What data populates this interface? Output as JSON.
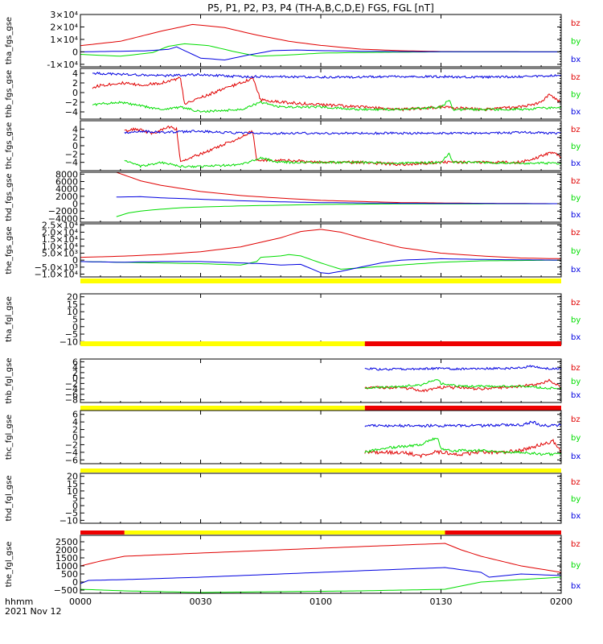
{
  "title": "P5, P1, P2, P3, P4 (TH-A,B,C,D,E) FGS, FGL [nT]",
  "footer": {
    "time_label": "hhmm",
    "date_label": "2021 Nov 12"
  },
  "colors": {
    "bz": "#e00000",
    "by": "#00dd00",
    "bx": "#0000e0",
    "bar_yellow": "#ffff00",
    "bar_red": "#ee0000"
  },
  "x_axis": {
    "range_min": [
      0,
      120
    ],
    "ticks_min": [
      0,
      30,
      60,
      90,
      120
    ],
    "tick_labels": [
      "0000",
      "0030",
      "0100",
      "0130",
      "0200"
    ]
  },
  "chart_data": [
    {
      "type": "line",
      "panel": "tha_fgs_gse",
      "ylabel": "tha_fgs_gse",
      "ylim": [
        -12000,
        30000
      ],
      "yticks": [
        -10000,
        0,
        10000,
        20000,
        30000
      ],
      "ytick_labels": [
        "-1×10⁴",
        "0",
        "1×10⁴",
        "2×10⁴",
        "3×10⁴"
      ],
      "series": [
        {
          "name": "bz",
          "x": [
            0,
            10,
            20,
            28,
            36,
            44,
            52,
            60,
            70,
            80,
            90,
            100,
            110,
            120
          ],
          "values": [
            5000,
            8500,
            16500,
            22000,
            19500,
            13500,
            8500,
            5200,
            2200,
            900,
            300,
            100,
            50,
            0
          ]
        },
        {
          "name": "by",
          "x": [
            0,
            10,
            18,
            22,
            26,
            32,
            38,
            44,
            52,
            60,
            70,
            80,
            90,
            120
          ],
          "values": [
            -2000,
            -3500,
            -600,
            4500,
            6500,
            5000,
            500,
            -3500,
            -2500,
            -1000,
            -500,
            -200,
            0,
            0
          ]
        },
        {
          "name": "bx",
          "x": [
            0,
            10,
            16,
            22,
            24,
            30,
            36,
            42,
            48,
            54,
            60,
            70,
            80,
            120
          ],
          "values": [
            0,
            500,
            800,
            2000,
            4000,
            -5000,
            -6500,
            -2500,
            1000,
            1500,
            1000,
            500,
            200,
            0
          ]
        }
      ]
    },
    {
      "type": "line",
      "panel": "thb_fgs_gse",
      "ylabel": "thb_fgs_gse",
      "ylim": [
        -5.5,
        5
      ],
      "yticks": [
        -4,
        -2,
        0,
        2,
        4
      ],
      "ytick_labels": [
        "−4",
        "−2",
        "0",
        "2",
        "4"
      ],
      "series": [
        {
          "name": "bz",
          "x": [
            3,
            5,
            10,
            15,
            20,
            25,
            26,
            30,
            35,
            40,
            43,
            45,
            50,
            60,
            70,
            80,
            90,
            100,
            110,
            115,
            117,
            120
          ],
          "values": [
            1,
            1.5,
            2,
            1.5,
            2,
            3,
            -2.5,
            -1,
            0.5,
            2,
            3,
            -1.5,
            -2,
            -2.5,
            -3,
            -3.5,
            -3,
            -3.5,
            -3,
            -2,
            -0.5,
            -2
          ]
        },
        {
          "name": "by",
          "x": [
            3,
            10,
            20,
            25,
            30,
            40,
            45,
            50,
            60,
            70,
            80,
            90,
            92,
            93,
            100,
            110,
            120
          ],
          "values": [
            -2.5,
            -2,
            -3.5,
            -3,
            -4,
            -3.5,
            -2,
            -3,
            -3,
            -3.5,
            -3.5,
            -3,
            -1.5,
            -3.5,
            -3.5,
            -3.5,
            -3
          ]
        },
        {
          "name": "bx",
          "x": [
            3,
            10,
            20,
            30,
            40,
            50,
            60,
            70,
            80,
            90,
            100,
            110,
            120
          ],
          "values": [
            4,
            3.8,
            3.5,
            3.7,
            3.3,
            3.3,
            3.2,
            3.2,
            3.3,
            3.3,
            3.2,
            3.3,
            3.5
          ]
        }
      ]
    },
    {
      "type": "line",
      "panel": "thc_fgs_gse",
      "ylabel": "thc_fgs_gse",
      "ylim": [
        -6,
        6
      ],
      "yticks": [
        -4,
        -2,
        0,
        2,
        4
      ],
      "ytick_labels": [
        "−4",
        "−2",
        "0",
        "2",
        "4"
      ],
      "series": [
        {
          "name": "bz",
          "x": [
            11,
            14,
            18,
            22,
            24,
            25,
            30,
            35,
            40,
            43,
            44,
            50,
            60,
            70,
            80,
            90,
            100,
            110,
            115,
            118,
            120
          ],
          "values": [
            3.5,
            4,
            3,
            4.5,
            4,
            -4,
            -2,
            0,
            2,
            3.5,
            -3.5,
            -3.5,
            -4,
            -4,
            -4.5,
            -4,
            -4,
            -4,
            -2.5,
            -1.5,
            -3
          ]
        },
        {
          "name": "by",
          "x": [
            11,
            15,
            20,
            25,
            30,
            40,
            45,
            50,
            60,
            70,
            80,
            90,
            92,
            93,
            100,
            110,
            120
          ],
          "values": [
            -3.5,
            -5,
            -4,
            -5,
            -5,
            -4.5,
            -3,
            -4,
            -4,
            -4,
            -4.2,
            -4,
            -2,
            -4,
            -4,
            -4.2,
            -4.2
          ]
        },
        {
          "name": "bx",
          "x": [
            11,
            15,
            20,
            30,
            40,
            50,
            60,
            70,
            80,
            90,
            100,
            110,
            120
          ],
          "values": [
            3,
            3.5,
            3.2,
            3.5,
            3,
            3,
            3,
            3,
            3,
            3,
            3,
            3.2,
            3
          ]
        }
      ]
    },
    {
      "type": "line",
      "panel": "thd_fgs_gse",
      "ylabel": "thd_fgs_gse",
      "ylim": [
        -5000,
        8500
      ],
      "yticks": [
        -4000,
        -2000,
        0,
        2000,
        4000,
        6000,
        8000
      ],
      "ytick_labels": [
        "−4000",
        "−2000",
        "0",
        "2000",
        "4000",
        "6000",
        "8000"
      ],
      "series": [
        {
          "name": "bz",
          "x": [
            9,
            15,
            20,
            30,
            40,
            50,
            60,
            70,
            80,
            100,
            120
          ],
          "values": [
            8500,
            6200,
            5000,
            3300,
            2200,
            1500,
            900,
            600,
            300,
            100,
            0
          ]
        },
        {
          "name": "by",
          "x": [
            9,
            12,
            15,
            20,
            25,
            30,
            40,
            50,
            60,
            80,
            120
          ],
          "values": [
            -3500,
            -2500,
            -2000,
            -1500,
            -1100,
            -900,
            -600,
            -400,
            -200,
            -50,
            0
          ]
        },
        {
          "name": "bx",
          "x": [
            9,
            15,
            20,
            30,
            40,
            50,
            60,
            80,
            120
          ],
          "values": [
            1800,
            1900,
            1600,
            1200,
            800,
            500,
            300,
            100,
            0
          ]
        }
      ]
    },
    {
      "type": "line",
      "panel": "the_fgs_gse",
      "ylabel": "the_fgs_gse",
      "ylim": [
        -12000,
        26000
      ],
      "yticks": [
        -10000,
        -5000,
        0,
        5000,
        10000,
        15000,
        20000,
        25000
      ],
      "ytick_labels": [
        "−1.0×10⁴",
        "−5.0×10³",
        "0",
        "5.0×10³",
        "1.0×10⁴",
        "1.5×10⁴",
        "2.0×10⁴",
        "2.5×10⁴"
      ],
      "series": [
        {
          "name": "bz",
          "x": [
            0,
            10,
            20,
            30,
            40,
            50,
            55,
            60,
            65,
            70,
            75,
            80,
            90,
            100,
            110,
            120
          ],
          "values": [
            2000,
            2800,
            4000,
            6000,
            9500,
            16000,
            20500,
            22000,
            20000,
            16000,
            12500,
            9000,
            5000,
            3000,
            1500,
            1000
          ]
        },
        {
          "name": "by",
          "x": [
            0,
            10,
            20,
            30,
            40,
            44,
            45,
            50,
            52,
            55,
            60,
            65,
            70,
            80,
            90,
            100,
            120
          ],
          "values": [
            -1000,
            -1500,
            -2000,
            -2500,
            -3500,
            -1000,
            2000,
            3000,
            4000,
            3000,
            -2000,
            -6500,
            -5500,
            -3500,
            -1500,
            -500,
            0
          ]
        },
        {
          "name": "bx",
          "x": [
            0,
            10,
            20,
            30,
            40,
            45,
            50,
            55,
            60,
            62,
            65,
            70,
            75,
            80,
            90,
            100,
            120
          ],
          "values": [
            -1000,
            -1500,
            -1000,
            -1000,
            -2000,
            -2500,
            -3500,
            -3000,
            -9000,
            -9500,
            -8000,
            -5000,
            -2000,
            0,
            1000,
            500,
            0
          ]
        }
      ]
    },
    {
      "type": "line",
      "panel": "tha_fgl_gse",
      "ylabel": "tha_fgl_gse",
      "ylim": [
        -12,
        22
      ],
      "yticks": [
        -10,
        -5,
        0,
        5,
        10,
        15,
        20
      ],
      "ytick_labels": [
        "−10",
        "−5",
        "0",
        "5",
        "10",
        "15",
        "20"
      ],
      "status_bar": [
        {
          "from": 0,
          "to": 120,
          "state": "yellow"
        }
      ],
      "series": [
        {
          "name": "bz",
          "x": [],
          "values": []
        },
        {
          "name": "by",
          "x": [],
          "values": []
        },
        {
          "name": "bx",
          "x": [],
          "values": []
        }
      ]
    },
    {
      "type": "line",
      "panel": "thb_fgl_gse",
      "ylabel": "thb_fgl_gse",
      "ylim": [
        -9,
        7
      ],
      "yticks": [
        -8,
        -6,
        -4,
        -2,
        0,
        2,
        4,
        6
      ],
      "ytick_labels": [
        "−8",
        "−6",
        "−4",
        "−2",
        "0",
        "2",
        "4",
        "6"
      ],
      "status_bar": [
        {
          "from": 0,
          "to": 71,
          "state": "yellow"
        },
        {
          "from": 71,
          "to": 120,
          "state": "red"
        }
      ],
      "series": [
        {
          "name": "bz",
          "x": [
            71,
            75,
            80,
            83,
            85,
            88,
            90,
            95,
            100,
            105,
            110,
            115,
            117,
            120
          ],
          "values": [
            -3.5,
            -3.5,
            -3.5,
            -4,
            -5,
            -4,
            -3.5,
            -3.5,
            -4,
            -3.5,
            -3,
            -2,
            -1,
            -3.5
          ]
        },
        {
          "name": "by",
          "x": [
            71,
            75,
            80,
            85,
            89,
            90,
            92,
            95,
            100,
            105,
            110,
            115,
            120
          ],
          "values": [
            -3.5,
            -3.5,
            -3,
            -2.5,
            -0.5,
            -2,
            -2.5,
            -3,
            -3,
            -3,
            -3,
            -3.5,
            -4
          ]
        },
        {
          "name": "bx",
          "x": [
            71,
            75,
            80,
            85,
            90,
            95,
            100,
            105,
            110,
            113,
            115,
            120
          ],
          "values": [
            3.5,
            3.2,
            3.3,
            3.5,
            3.5,
            3.3,
            3.5,
            3.5,
            3.7,
            4.5,
            3.5,
            3.5
          ]
        }
      ]
    },
    {
      "type": "line",
      "panel": "thc_fgl_gse",
      "ylabel": "thc_fgl_gse",
      "ylim": [
        -7,
        7
      ],
      "yticks": [
        -6,
        -4,
        -2,
        0,
        2,
        4,
        6
      ],
      "ytick_labels": [
        "−6",
        "−4",
        "−2",
        "0",
        "2",
        "4",
        "6"
      ],
      "status_bar": [
        {
          "from": 0,
          "to": 71,
          "state": "yellow"
        },
        {
          "from": 71,
          "to": 120,
          "state": "red"
        }
      ],
      "series": [
        {
          "name": "bz",
          "x": [
            71,
            75,
            80,
            83,
            85,
            88,
            90,
            95,
            100,
            105,
            110,
            115,
            118,
            120
          ],
          "values": [
            -4,
            -4,
            -4,
            -4.5,
            -5,
            -4,
            -4,
            -4.5,
            -4,
            -4,
            -3.5,
            -2,
            -1,
            -4
          ]
        },
        {
          "name": "by",
          "x": [
            71,
            75,
            80,
            85,
            89,
            90,
            92,
            95,
            100,
            105,
            110,
            115,
            120
          ],
          "values": [
            -4,
            -3,
            -2.5,
            -2,
            0,
            -3,
            -3.5,
            -3.5,
            -3.5,
            -4,
            -4,
            -4.5,
            -4.5
          ]
        },
        {
          "name": "bx",
          "x": [
            71,
            75,
            80,
            85,
            90,
            95,
            100,
            105,
            110,
            113,
            115,
            120
          ],
          "values": [
            3,
            3,
            3,
            3,
            3,
            3,
            3,
            3.2,
            3.2,
            4,
            3,
            3.2
          ]
        }
      ]
    },
    {
      "type": "line",
      "panel": "thd_fgl_gse",
      "ylabel": "thd_fgl_gse",
      "ylim": [
        -12,
        22
      ],
      "yticks": [
        -10,
        -5,
        0,
        5,
        10,
        15,
        20
      ],
      "ytick_labels": [
        "−10",
        "−5",
        "0",
        "5",
        "10",
        "15",
        "20"
      ],
      "status_bar": [
        {
          "from": 0,
          "to": 120,
          "state": "yellow"
        }
      ],
      "series": [
        {
          "name": "bz",
          "x": [],
          "values": []
        },
        {
          "name": "by",
          "x": [],
          "values": []
        },
        {
          "name": "bx",
          "x": [],
          "values": []
        }
      ]
    },
    {
      "type": "line",
      "panel": "the_fgl_gse",
      "ylabel": "the_fgl_gse",
      "ylim": [
        -700,
        2900
      ],
      "yticks": [
        -500,
        0,
        500,
        1000,
        1500,
        2000,
        2500
      ],
      "ytick_labels": [
        "−500",
        "0",
        "500",
        "1000",
        "1500",
        "2000",
        "2500"
      ],
      "status_bar": [
        {
          "from": 0,
          "to": 11,
          "state": "red"
        },
        {
          "from": 11,
          "to": 91,
          "state": "yellow"
        },
        {
          "from": 91,
          "to": 120,
          "state": "red"
        }
      ],
      "series": [
        {
          "name": "bz",
          "x": [
            0,
            5,
            11,
            30,
            50,
            70,
            91,
            95,
            100,
            110,
            120
          ],
          "values": [
            1000,
            1300,
            1600,
            1800,
            2000,
            2200,
            2400,
            2000,
            1600,
            1000,
            600
          ]
        },
        {
          "name": "by",
          "x": [
            0,
            11,
            30,
            50,
            70,
            91,
            95,
            100,
            110,
            120
          ],
          "values": [
            -450,
            -550,
            -650,
            -600,
            -550,
            -450,
            -250,
            0,
            150,
            300
          ]
        },
        {
          "name": "bx",
          "x": [
            0,
            2,
            11,
            30,
            50,
            70,
            91,
            100,
            102,
            110,
            120
          ],
          "values": [
            -100,
            100,
            150,
            300,
            500,
            700,
            900,
            600,
            300,
            500,
            400
          ]
        }
      ]
    }
  ]
}
